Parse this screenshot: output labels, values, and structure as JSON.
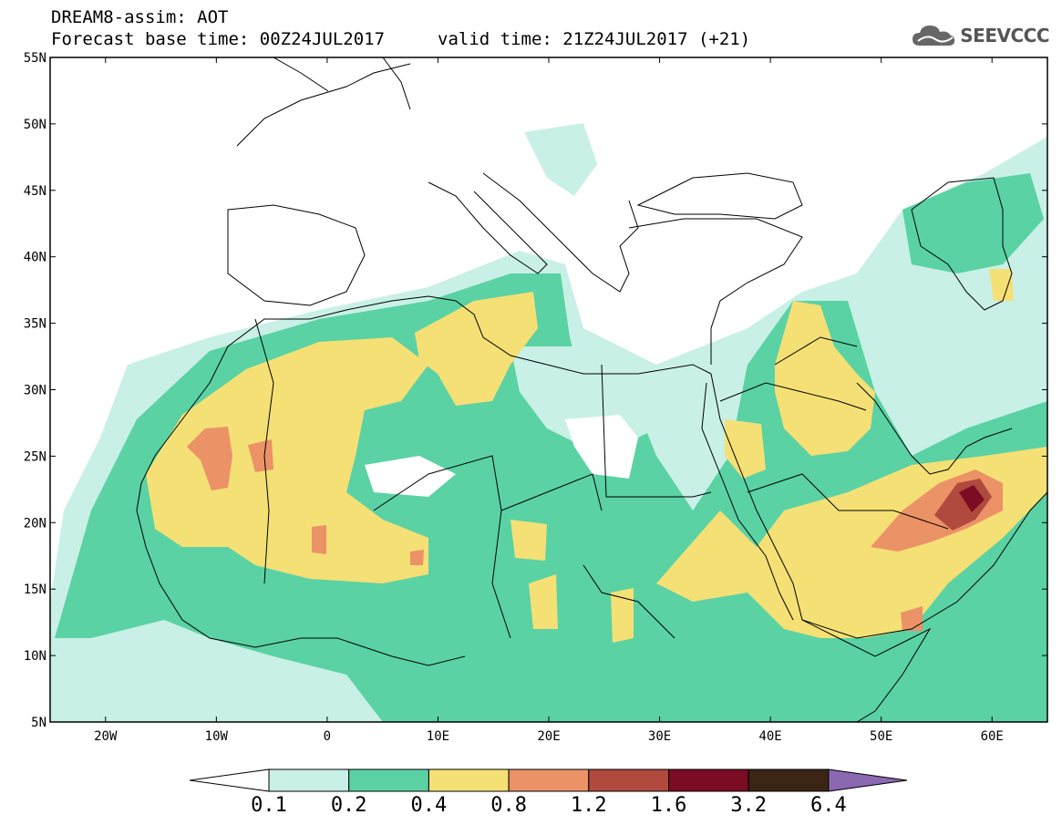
{
  "header": {
    "model": "DREAM8-assim: AOT",
    "base_time": "Forecast base time: 00Z24JUL2017",
    "valid_time": "valid time: 21Z24JUL2017 (+21)"
  },
  "logo": {
    "icon": "cloud-icon",
    "text": "SEEVCCC"
  },
  "map": {
    "lon_range": [
      -25,
      65
    ],
    "lat_range": [
      5,
      55
    ],
    "lat_ticks": [
      {
        "value": 55,
        "label": "55N"
      },
      {
        "value": 50,
        "label": "50N"
      },
      {
        "value": 45,
        "label": "45N"
      },
      {
        "value": 40,
        "label": "40N"
      },
      {
        "value": 35,
        "label": "35N"
      },
      {
        "value": 30,
        "label": "30N"
      },
      {
        "value": 25,
        "label": "25N"
      },
      {
        "value": 20,
        "label": "20N"
      },
      {
        "value": 15,
        "label": "15N"
      },
      {
        "value": 10,
        "label": "10N"
      },
      {
        "value": 5,
        "label": "5N"
      }
    ],
    "lon_ticks": [
      {
        "value": -20,
        "label": "20W"
      },
      {
        "value": -10,
        "label": "10W"
      },
      {
        "value": 0,
        "label": "0"
      },
      {
        "value": 10,
        "label": "10E"
      },
      {
        "value": 20,
        "label": "20E"
      },
      {
        "value": 30,
        "label": "30E"
      },
      {
        "value": 40,
        "label": "40E"
      },
      {
        "value": 50,
        "label": "50E"
      },
      {
        "value": 60,
        "label": "60E"
      }
    ]
  },
  "colorbar": {
    "levels": [
      "0.1",
      "0.2",
      "0.4",
      "0.8",
      "1.2",
      "1.6",
      "3.2",
      "6.4"
    ],
    "colors": [
      "#ffffff",
      "#c8f0e6",
      "#5ad2a4",
      "#f5e076",
      "#eb9266",
      "#b04a3e",
      "#7a0c24",
      "#3b2514",
      "#8b68b2"
    ]
  }
}
